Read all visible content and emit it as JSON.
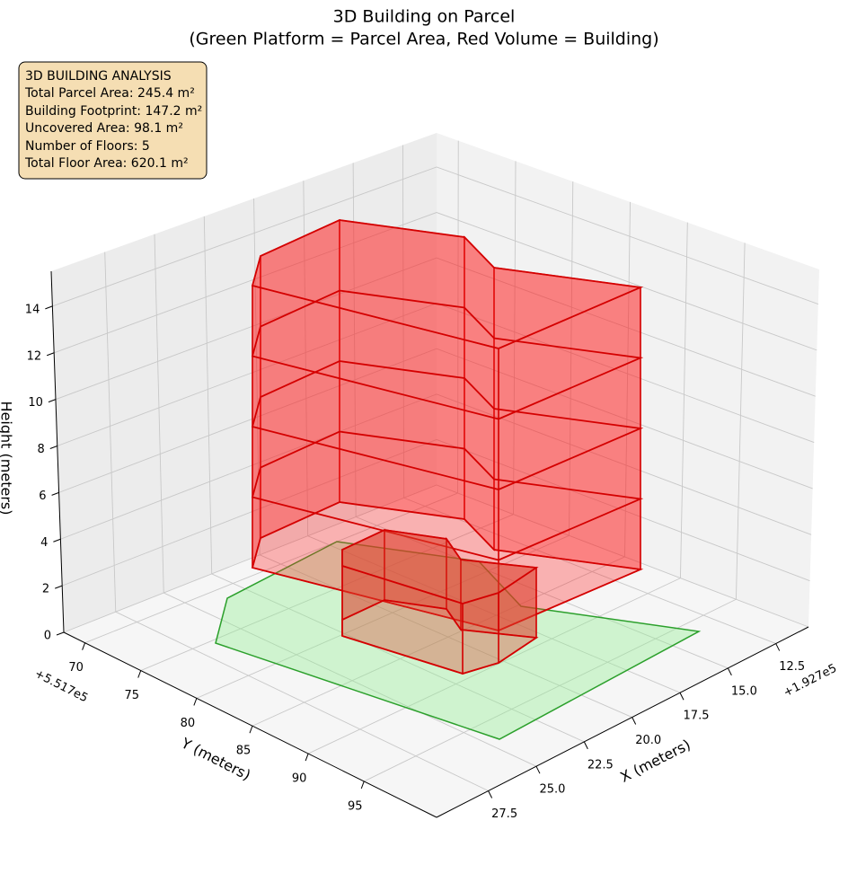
{
  "chart_data": {
    "type": "3d-polygons",
    "title": "3D Building on Parcel",
    "subtitle": "(Green Platform = Parcel Area, Red Volume = Building)",
    "annotation": [
      "3D BUILDING ANALYSIS",
      "Total Parcel Area: 245.4 m²",
      "Building Footprint: 147.2 m²",
      "Uncovered Area: 98.1 m²",
      "Number of Floors: 5",
      "Total Floor Area: 620.1 m²"
    ],
    "xlabel": "X (meters)",
    "ylabel": "Y (meters)",
    "zlabel": "Height (meters)",
    "x_offset": "+1.927e5",
    "y_offset": "+5.517e5",
    "xlim": [
      10.8,
      30.2
    ],
    "ylim": [
      68.1,
      101.5
    ],
    "zlim": [
      0,
      15.5
    ],
    "xticks": [
      12.5,
      {
        "value": 15,
        "label": "15.0"
      },
      17.5,
      {
        "value": 20,
        "label": "20.0"
      },
      22.5,
      {
        "value": 25,
        "label": "25.0"
      },
      27.5
    ],
    "yticks": [
      70,
      75,
      80,
      85,
      90,
      95
    ],
    "zticks": [
      0,
      2,
      4,
      6,
      8,
      10,
      12,
      14
    ],
    "grid": true
  }
}
